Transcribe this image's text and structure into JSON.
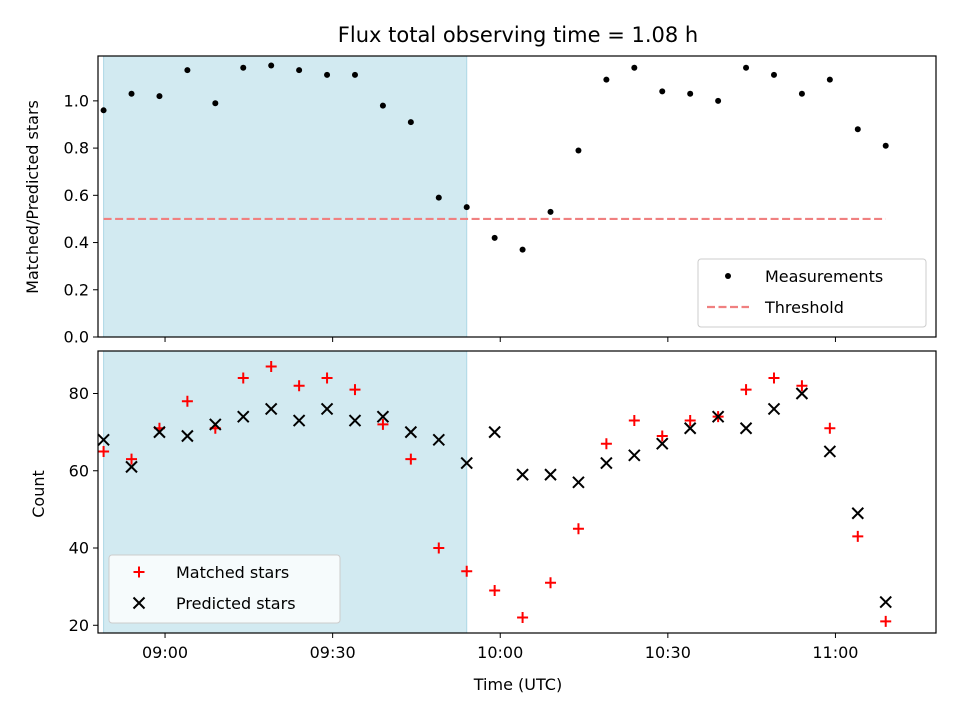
{
  "chart_data": [
    {
      "type": "scatter",
      "title": "Flux total observing time = 1.08 h",
      "xlabel": "",
      "ylabel": "Matched/Predicted stars",
      "x_unit": "time",
      "xlim": [
        "08:48",
        "11:18"
      ],
      "ylim": [
        0,
        1.19
      ],
      "yticks": [
        "0.0",
        "0.2",
        "0.4",
        "0.6",
        "0.8",
        "1.0"
      ],
      "shaded_interval": [
        "08:49",
        "09:54"
      ],
      "shade_color": "#add8e6",
      "legend_position": "lower right",
      "series": [
        {
          "name": "Measurements",
          "marker": "dot",
          "color": "#000000",
          "x": [
            "08:49",
            "08:54",
            "08:59",
            "09:04",
            "09:09",
            "09:14",
            "09:19",
            "09:24",
            "09:29",
            "09:34",
            "09:39",
            "09:44",
            "09:49",
            "09:54",
            "09:59",
            "10:04",
            "10:09",
            "10:14",
            "10:19",
            "10:24",
            "10:29",
            "10:34",
            "10:39",
            "10:44",
            "10:49",
            "10:54",
            "10:59",
            "11:04",
            "11:09"
          ],
          "y": [
            0.96,
            1.03,
            1.02,
            1.13,
            0.99,
            1.14,
            1.15,
            1.13,
            1.11,
            1.11,
            0.98,
            0.91,
            0.59,
            0.55,
            0.42,
            0.37,
            0.53,
            0.79,
            1.09,
            1.14,
            1.04,
            1.03,
            1.0,
            1.14,
            1.11,
            1.03,
            1.09,
            0.88,
            0.81
          ]
        },
        {
          "name": "Threshold",
          "style": "dashed-line",
          "color": "#f08080",
          "x": [
            "08:49",
            "11:09"
          ],
          "y": [
            0.5,
            0.5
          ]
        }
      ]
    },
    {
      "type": "scatter",
      "title": "",
      "xlabel": "Time (UTC)",
      "ylabel": "Count",
      "x_unit": "time",
      "xlim": [
        "08:48",
        "11:18"
      ],
      "ylim": [
        18,
        91
      ],
      "yticks": [
        "20",
        "40",
        "60",
        "80"
      ],
      "xticks": [
        "09:00",
        "09:30",
        "10:00",
        "10:30",
        "11:00"
      ],
      "shaded_interval": [
        "08:49",
        "09:54"
      ],
      "shade_color": "#add8e6",
      "legend_position": "lower left",
      "series": [
        {
          "name": "Matched stars",
          "marker": "plus",
          "color": "#ff0000",
          "x": [
            "08:49",
            "08:54",
            "08:59",
            "09:04",
            "09:09",
            "09:14",
            "09:19",
            "09:24",
            "09:29",
            "09:34",
            "09:39",
            "09:44",
            "09:49",
            "09:54",
            "09:59",
            "10:04",
            "10:09",
            "10:14",
            "10:19",
            "10:24",
            "10:29",
            "10:34",
            "10:39",
            "10:44",
            "10:49",
            "10:54",
            "10:59",
            "11:04",
            "11:09"
          ],
          "y": [
            65,
            63,
            71,
            78,
            71,
            84,
            87,
            82,
            84,
            81,
            72,
            63,
            40,
            34,
            29,
            22,
            31,
            45,
            67,
            73,
            69,
            73,
            74,
            81,
            84,
            82,
            71,
            43,
            21
          ]
        },
        {
          "name": "Predicted stars",
          "marker": "x",
          "color": "#000000",
          "x": [
            "08:49",
            "08:54",
            "08:59",
            "09:04",
            "09:09",
            "09:14",
            "09:19",
            "09:24",
            "09:29",
            "09:34",
            "09:39",
            "09:44",
            "09:49",
            "09:54",
            "09:59",
            "10:04",
            "10:09",
            "10:14",
            "10:19",
            "10:24",
            "10:29",
            "10:34",
            "10:39",
            "10:44",
            "10:49",
            "10:54",
            "10:59",
            "11:04",
            "11:09"
          ],
          "y": [
            68,
            61,
            70,
            69,
            72,
            74,
            76,
            73,
            76,
            73,
            74,
            70,
            68,
            62,
            70,
            59,
            59,
            57,
            62,
            64,
            67,
            71,
            74,
            71,
            76,
            80,
            65,
            49,
            26
          ]
        }
      ]
    }
  ]
}
